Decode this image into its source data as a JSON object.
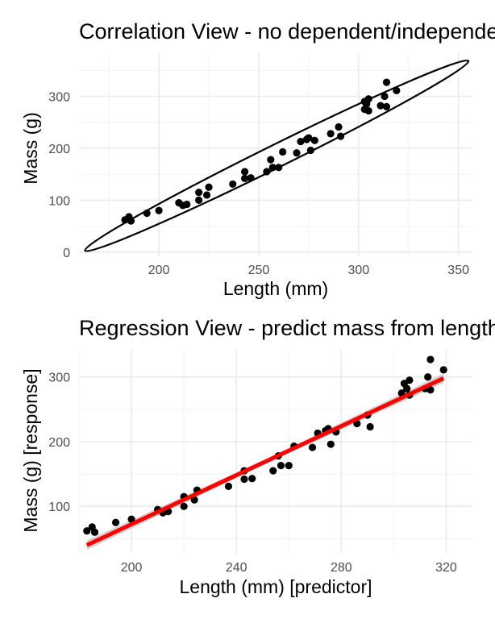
{
  "chart_data": [
    {
      "type": "scatter",
      "title": "Correlation View - no dependent/independent variables",
      "xlabel": "Length (mm)",
      "ylabel": "Mass (g)",
      "xlim": [
        160,
        357
      ],
      "ylim": [
        -8,
        383
      ],
      "xticks": [
        200,
        250,
        300,
        350
      ],
      "yticks": [
        0,
        100,
        200,
        300
      ],
      "grid": true,
      "overlay": {
        "type": "ellipse",
        "stroke": "#000000",
        "endpoints": [
          [
            163,
            3
          ],
          [
            355,
            368
          ]
        ],
        "half_width": 14
      },
      "points": [
        [
          183,
          62
        ],
        [
          185,
          68
        ],
        [
          186,
          60
        ],
        [
          194,
          75
        ],
        [
          200,
          80
        ],
        [
          210,
          95
        ],
        [
          212,
          90
        ],
        [
          214,
          92
        ],
        [
          220,
          100
        ],
        [
          220,
          115
        ],
        [
          224,
          110
        ],
        [
          225,
          125
        ],
        [
          237,
          131
        ],
        [
          243,
          142
        ],
        [
          243,
          155
        ],
        [
          246,
          143
        ],
        [
          254,
          155
        ],
        [
          256,
          178
        ],
        [
          257,
          163
        ],
        [
          260,
          163
        ],
        [
          262,
          193
        ],
        [
          269,
          191
        ],
        [
          271,
          213
        ],
        [
          274,
          217
        ],
        [
          275,
          220
        ],
        [
          276,
          196
        ],
        [
          278,
          215
        ],
        [
          286,
          228
        ],
        [
          290,
          241
        ],
        [
          291,
          223
        ],
        [
          303,
          275
        ],
        [
          303,
          290
        ],
        [
          305,
          295
        ],
        [
          305,
          272
        ],
        [
          304,
          285
        ],
        [
          311,
          282
        ],
        [
          313,
          300
        ],
        [
          314,
          327
        ],
        [
          314,
          280
        ],
        [
          319,
          311
        ]
      ]
    },
    {
      "type": "scatter",
      "title": "Regression View - predict mass from length",
      "xlabel": "Length (mm) [predictor]",
      "ylabel": "Mass (g) [response]",
      "xlim": [
        180,
        330
      ],
      "ylim": [
        28,
        342
      ],
      "xticks": [
        200,
        240,
        280,
        320
      ],
      "yticks": [
        100,
        200,
        300
      ],
      "grid": true,
      "fit_line": {
        "color": "#ff0000",
        "band_color": "#c8c8c8",
        "x": [
          183,
          319
        ],
        "y": [
          40,
          298
        ]
      },
      "points": [
        [
          183,
          62
        ],
        [
          185,
          68
        ],
        [
          186,
          60
        ],
        [
          194,
          75
        ],
        [
          200,
          80
        ],
        [
          210,
          95
        ],
        [
          212,
          90
        ],
        [
          214,
          92
        ],
        [
          220,
          100
        ],
        [
          220,
          115
        ],
        [
          224,
          110
        ],
        [
          225,
          125
        ],
        [
          237,
          131
        ],
        [
          243,
          142
        ],
        [
          243,
          155
        ],
        [
          246,
          143
        ],
        [
          254,
          155
        ],
        [
          256,
          178
        ],
        [
          257,
          163
        ],
        [
          260,
          163
        ],
        [
          262,
          193
        ],
        [
          269,
          191
        ],
        [
          271,
          213
        ],
        [
          274,
          217
        ],
        [
          275,
          220
        ],
        [
          276,
          196
        ],
        [
          278,
          215
        ],
        [
          286,
          228
        ],
        [
          290,
          241
        ],
        [
          291,
          223
        ],
        [
          303,
          275
        ],
        [
          304,
          290
        ],
        [
          305,
          282
        ],
        [
          306,
          295
        ],
        [
          306,
          272
        ],
        [
          312,
          282
        ],
        [
          313,
          300
        ],
        [
          314,
          327
        ],
        [
          314,
          280
        ],
        [
          319,
          311
        ]
      ]
    }
  ]
}
